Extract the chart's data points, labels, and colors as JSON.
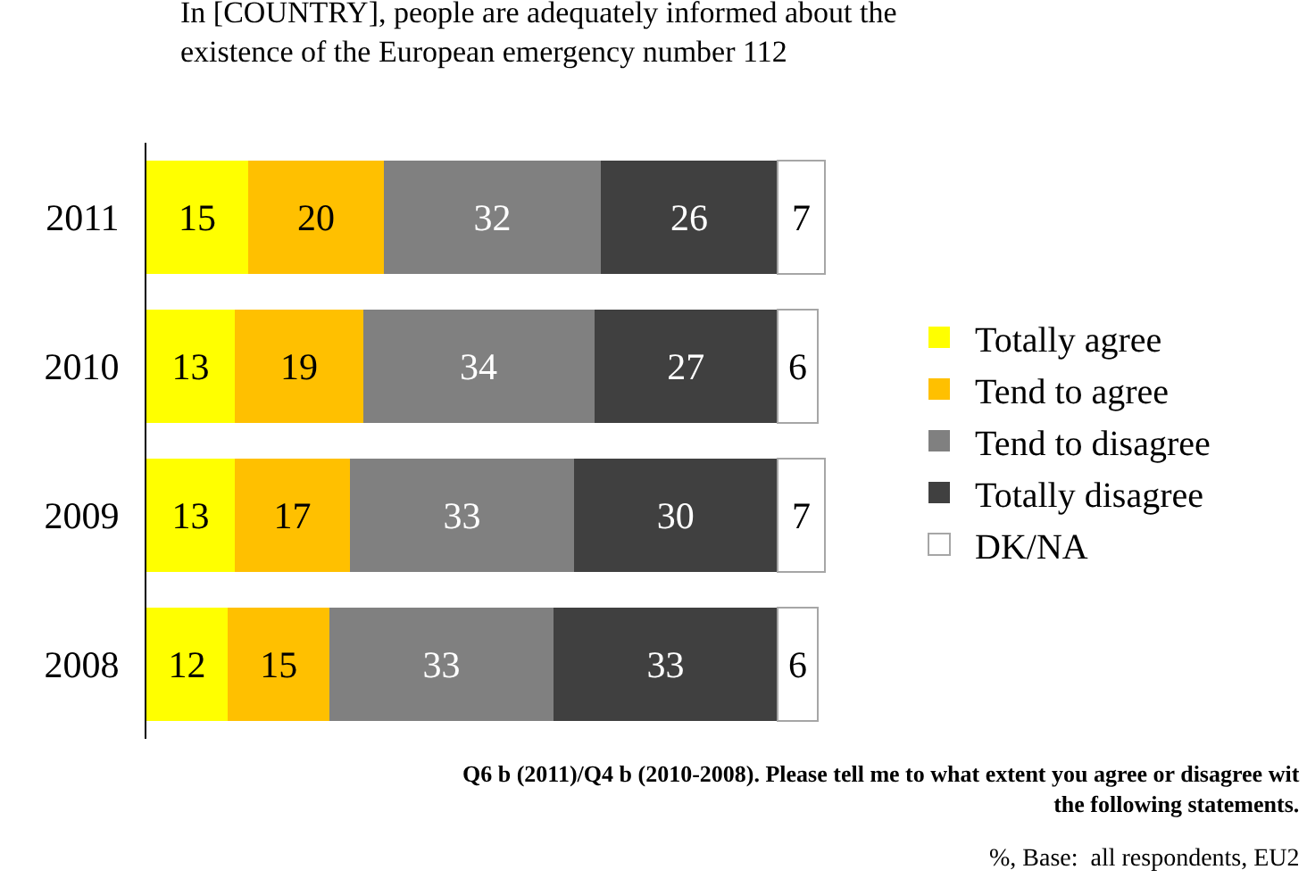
{
  "chart_data": {
    "type": "bar",
    "orientation": "horizontal",
    "stacked": true,
    "title": "In [COUNTRY], people are adequately informed about the\nexistence of the European emergency number 112",
    "categories": [
      "2011",
      "2010",
      "2009",
      "2008"
    ],
    "series": [
      {
        "name": "Totally agree",
        "color": "#ffff00",
        "values": [
          15,
          13,
          13,
          12
        ]
      },
      {
        "name": "Tend to agree",
        "color": "#ffc000",
        "values": [
          20,
          19,
          17,
          15
        ]
      },
      {
        "name": "Tend to disagree",
        "color": "#808080",
        "values": [
          32,
          34,
          33,
          33
        ]
      },
      {
        "name": "Totally disagree",
        "color": "#404040",
        "values": [
          26,
          27,
          30,
          33
        ]
      },
      {
        "name": "DK/NA",
        "color": "#ffffff",
        "values": [
          7,
          6,
          7,
          6
        ]
      }
    ],
    "data_labels": true,
    "legend": "right",
    "grid": false,
    "tick_labels": "y",
    "annotations": [
      "Q6 b (2011)/Q4 b (2010-2008). Please tell me to what extent you agree or disagree wit\nthe following statements.",
      "%, Base:  all respondents, EU2"
    ]
  }
}
